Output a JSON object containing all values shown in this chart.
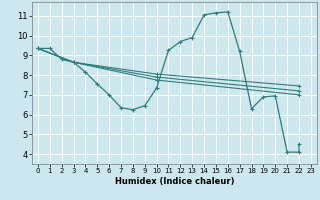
{
  "xlabel": "Humidex (Indice chaleur)",
  "bg_color": "#cce8ee",
  "grid_color": "#ffffff",
  "line_color": "#2e7d7d",
  "xlim": [
    -0.5,
    23.5
  ],
  "ylim": [
    3.5,
    11.7
  ],
  "xticks": [
    0,
    1,
    2,
    3,
    4,
    5,
    6,
    7,
    8,
    9,
    10,
    11,
    12,
    13,
    14,
    15,
    16,
    17,
    18,
    19,
    20,
    21,
    22,
    23
  ],
  "yticks": [
    4,
    5,
    6,
    7,
    8,
    9,
    10,
    11
  ],
  "lines": [
    {
      "x": [
        0,
        1,
        2,
        3,
        4,
        5,
        6,
        7,
        8,
        9,
        10,
        11,
        12,
        13,
        14,
        15,
        16,
        17,
        18,
        19,
        20,
        21,
        22,
        22
      ],
      "y": [
        9.35,
        9.35,
        8.8,
        8.65,
        8.15,
        7.55,
        7.0,
        6.35,
        6.25,
        6.45,
        7.35,
        9.25,
        9.7,
        9.9,
        11.05,
        11.15,
        11.2,
        9.2,
        6.3,
        6.9,
        6.95,
        4.1,
        4.1,
        4.5
      ]
    },
    {
      "x": [
        0,
        3,
        10,
        22
      ],
      "y": [
        9.35,
        8.65,
        7.75,
        7.0
      ]
    },
    {
      "x": [
        0,
        3,
        10,
        22
      ],
      "y": [
        9.35,
        8.65,
        7.9,
        7.2
      ]
    },
    {
      "x": [
        0,
        3,
        10,
        22
      ],
      "y": [
        9.35,
        8.65,
        8.05,
        7.45
      ]
    }
  ]
}
